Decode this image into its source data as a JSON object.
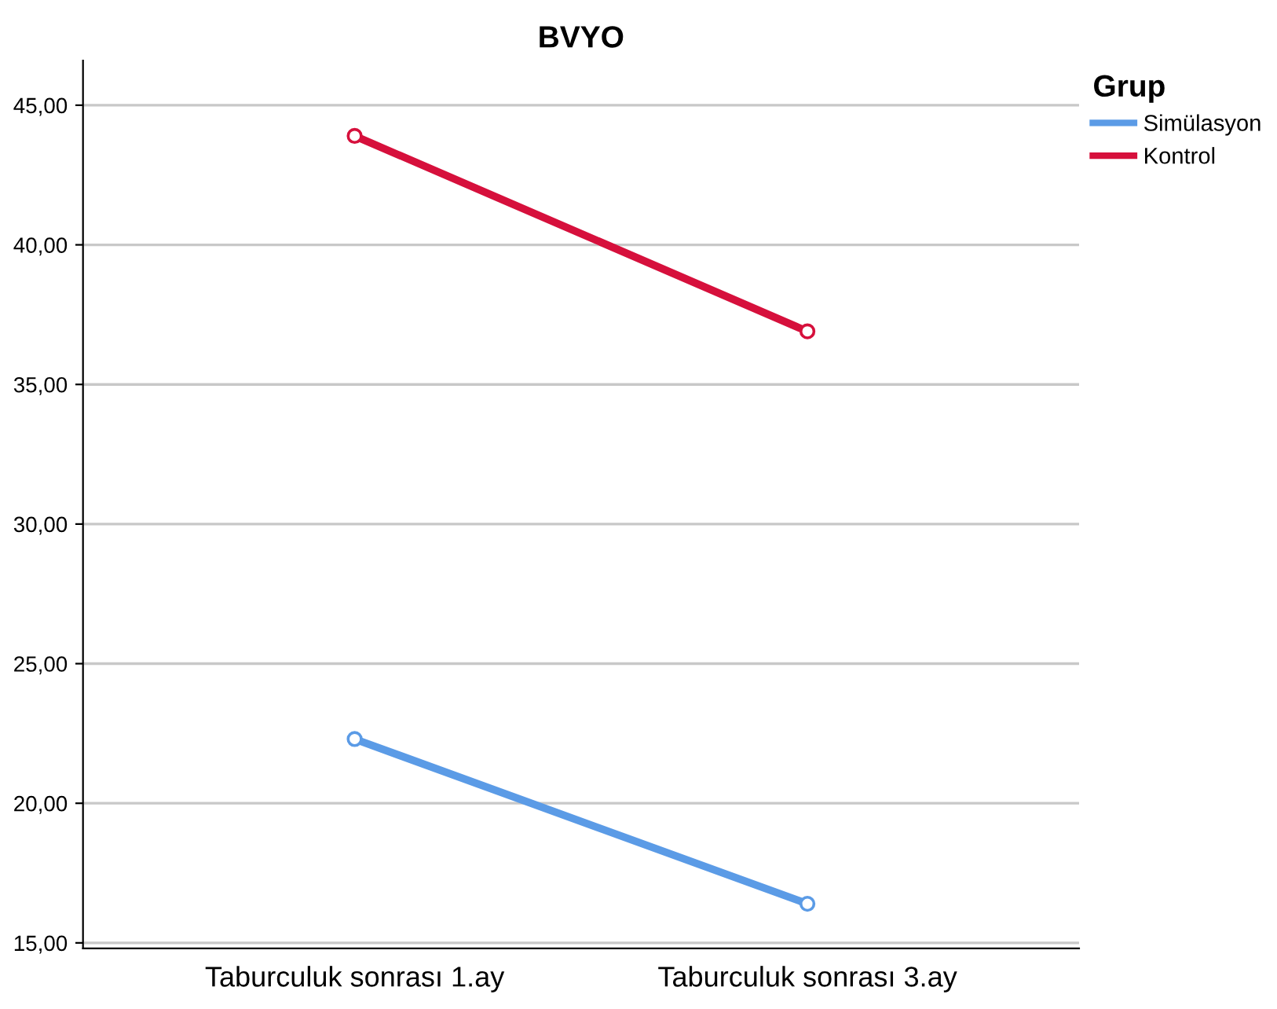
{
  "chart_data": {
    "type": "line",
    "title": "BVYO",
    "legend_title": "Grup",
    "categories": [
      "Taburculuk sonrası 1.ay",
      "Taburculuk sonrası 3.ay"
    ],
    "series": [
      {
        "name": "Simülasyon",
        "color": "#5b9be6",
        "values": [
          22.3,
          16.4
        ]
      },
      {
        "name": "Kontrol",
        "color": "#d6103c",
        "values": [
          43.9,
          36.9
        ]
      }
    ],
    "ylim": [
      14.8,
      46.6
    ],
    "yticks": [
      {
        "value": 15,
        "label": "15,00"
      },
      {
        "value": 20,
        "label": "20,00"
      },
      {
        "value": 25,
        "label": "25,00"
      },
      {
        "value": 30,
        "label": "30,00"
      },
      {
        "value": 35,
        "label": "35,00"
      },
      {
        "value": 40,
        "label": "40,00"
      },
      {
        "value": 45,
        "label": "45,00"
      }
    ],
    "grid": "y",
    "legend": "top right",
    "marker": "circle",
    "line_style": "solid"
  }
}
